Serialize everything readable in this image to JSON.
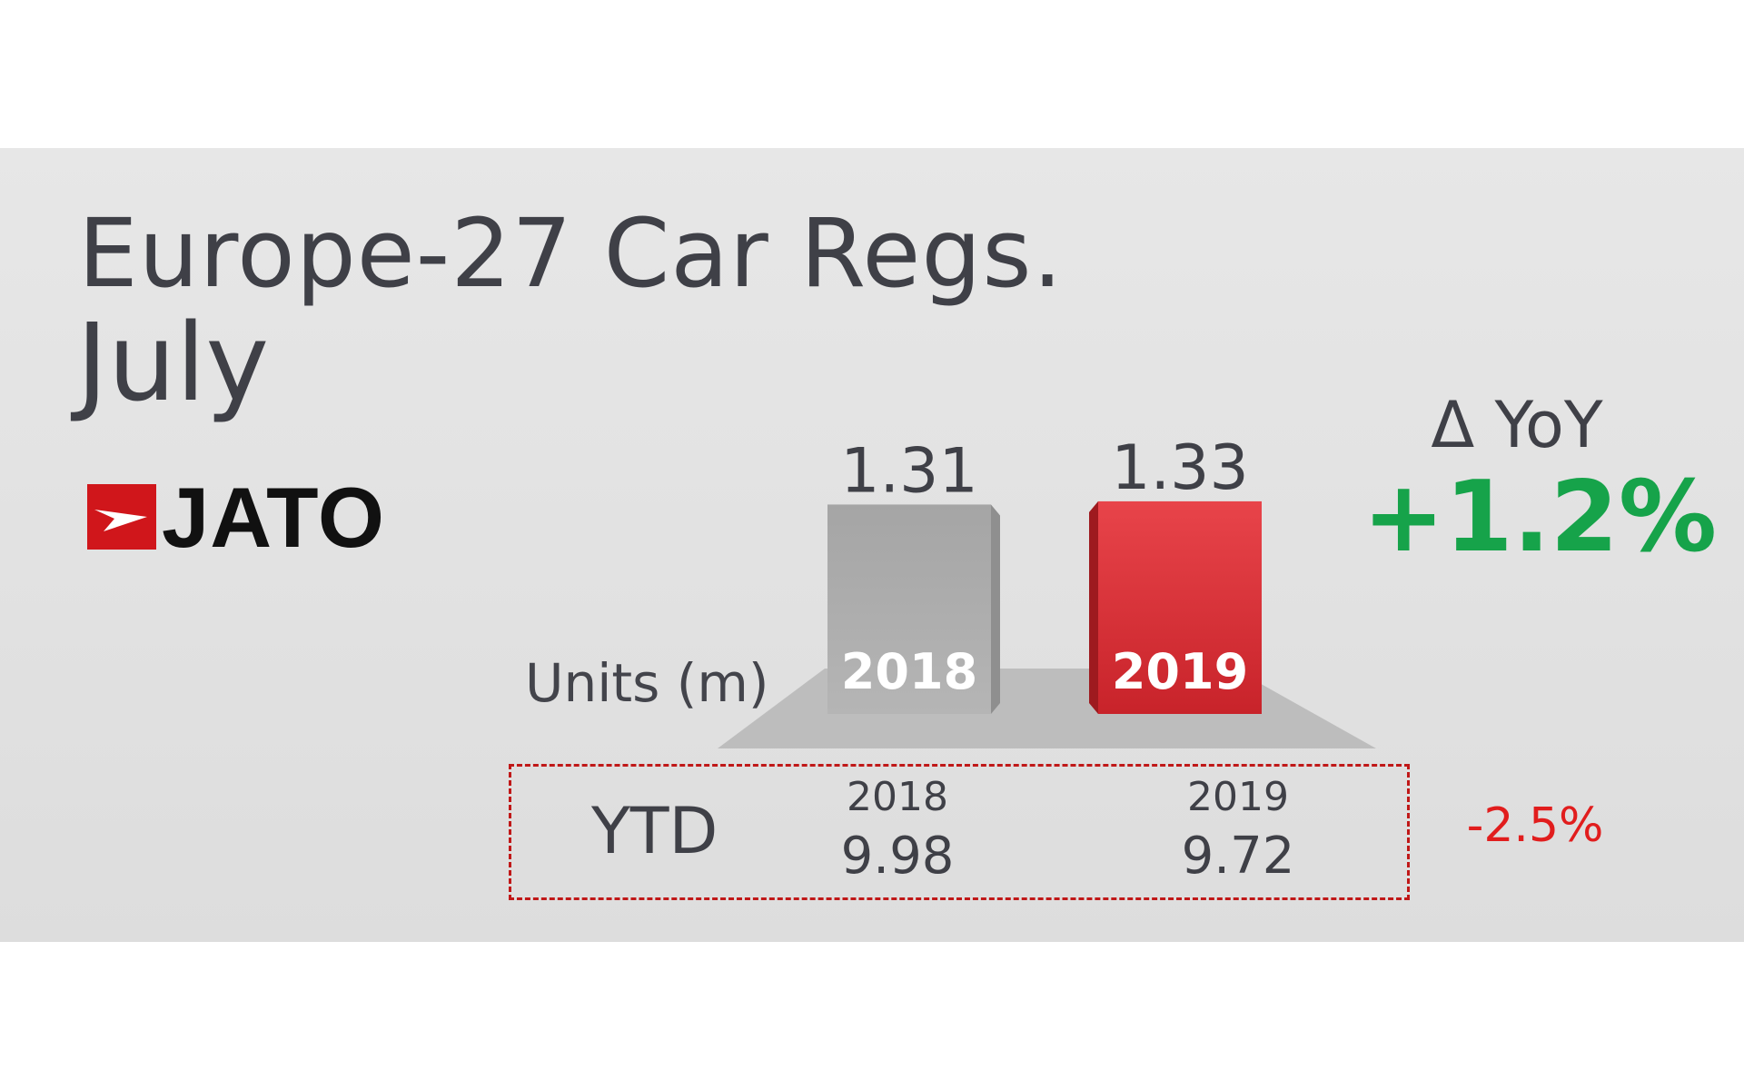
{
  "header": {
    "title": "Europe-27 Car Regs.",
    "subtitle": "July",
    "brand": "JATO"
  },
  "colors": {
    "bar_2018": "#a8a8a8",
    "bar_2019": "#e33a3f",
    "positive_change": "#16a34a",
    "negative_change": "#e11d1d",
    "brand_red": "#d0161b"
  },
  "chart_data": {
    "type": "bar",
    "title": "Europe-27 Car Regs.",
    "subtitle": "July",
    "ylabel": "Units (m)",
    "categories": [
      "2018",
      "2019"
    ],
    "values": [
      1.31,
      1.33
    ],
    "value_labels": [
      "1.31",
      "1.33"
    ],
    "grid": false,
    "legend": false
  },
  "delta": {
    "label": "Δ YoY",
    "value": "+1.2%"
  },
  "ytd": {
    "label": "YTD",
    "items": [
      {
        "year": "2018",
        "value": "9.98"
      },
      {
        "year": "2019",
        "value": "9.72"
      }
    ],
    "change": "-2.5%"
  }
}
